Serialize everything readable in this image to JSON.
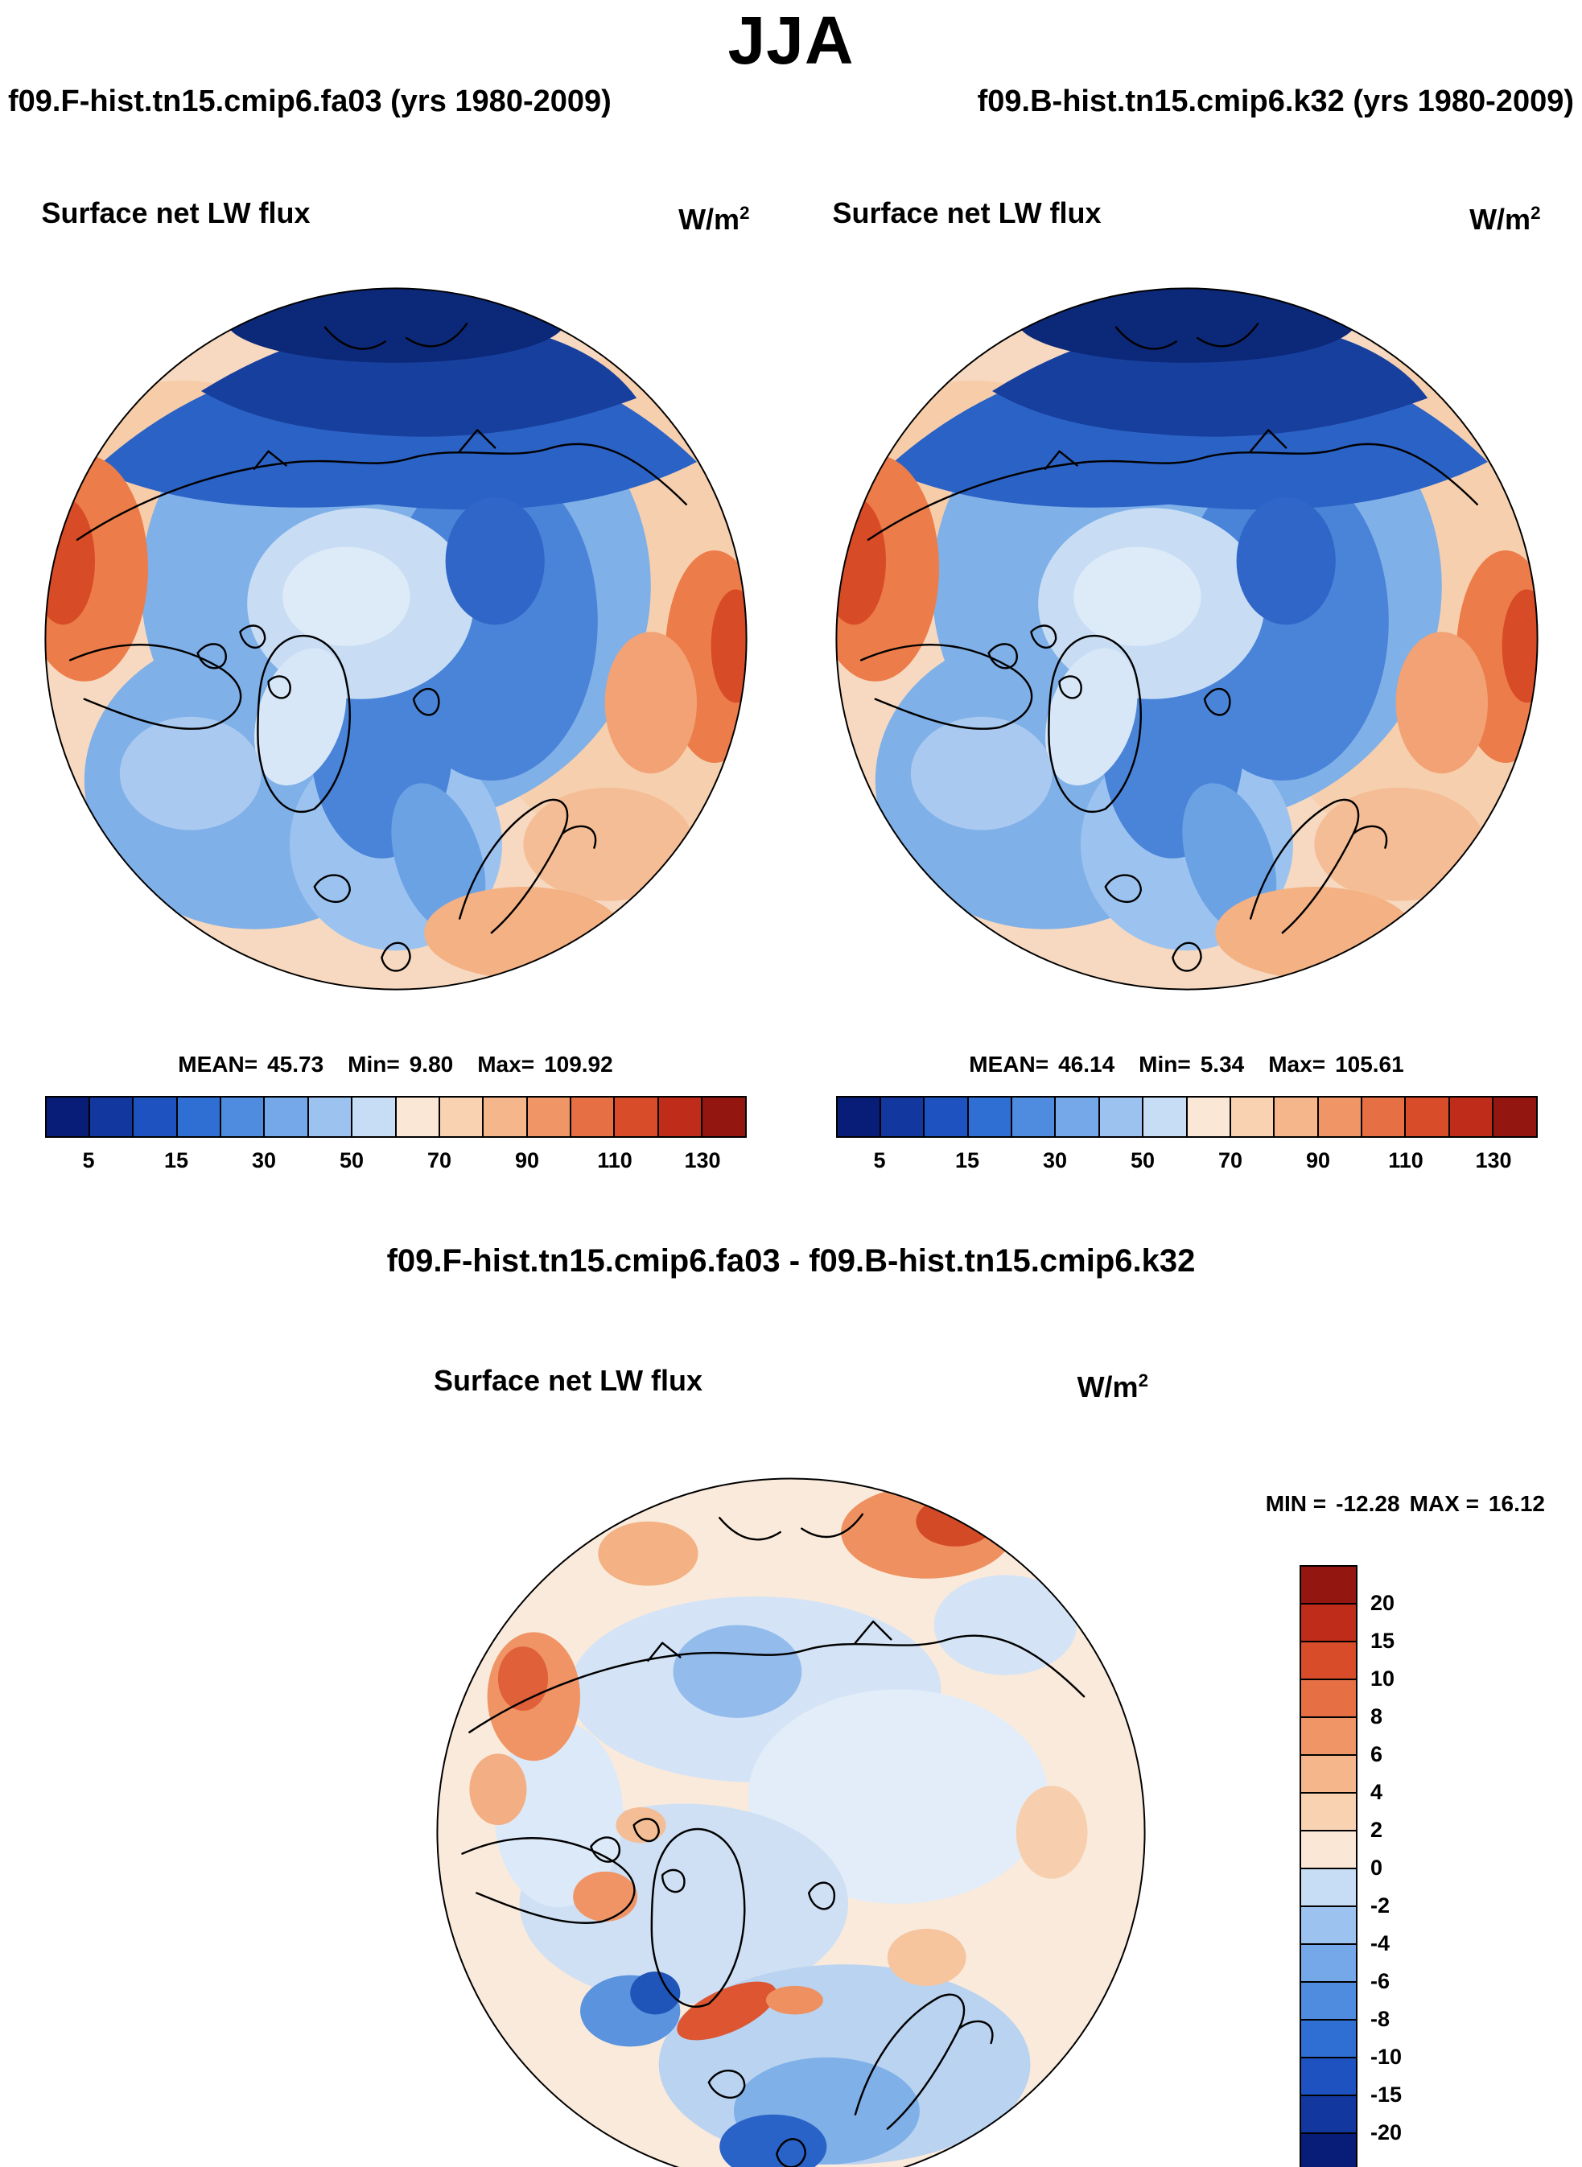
{
  "header": {
    "season": "JJA",
    "left_run": "f09.F-hist.tn15.cmip6.fa03 (yrs 1980-2009)",
    "right_run": "f09.B-hist.tn15.cmip6.k32 (yrs 1980-2009)"
  },
  "field": {
    "label": "Surface net LW flux",
    "units_base": "W/m",
    "units_exp": "2"
  },
  "panel_left": {
    "mean_label": "MEAN=",
    "mean": "45.73",
    "min_label": "Min=",
    "min": "9.80",
    "max_label": "Max=",
    "max": "109.92"
  },
  "panel_right": {
    "mean_label": "MEAN=",
    "mean": "46.14",
    "min_label": "Min=",
    "min": "5.34",
    "max_label": "Max=",
    "max": "105.61"
  },
  "diff_panel": {
    "title": "f09.F-hist.tn15.cmip6.fa03 - f09.B-hist.tn15.cmip6.k32",
    "min_label": "MIN =",
    "min": "-12.28",
    "max_label": "MAX =",
    "max": "16.12"
  },
  "colorbar_flux": {
    "colors": [
      "#081d78",
      "#12379e",
      "#1d52c0",
      "#2f6fd4",
      "#4f8ce0",
      "#74a8e8",
      "#9cc3f0",
      "#c6ddf5",
      "#fbe7d5",
      "#f9d2b2",
      "#f5b68c",
      "#ef9566",
      "#e67044",
      "#d94c2a",
      "#bf2c1a",
      "#931710"
    ],
    "ticks": [
      "5",
      "15",
      "30",
      "50",
      "70",
      "90",
      "110",
      "130"
    ]
  },
  "colorbar_diff": {
    "colors": [
      "#931710",
      "#bf2c1a",
      "#d94c2a",
      "#e67044",
      "#ef9566",
      "#f5b68c",
      "#f9d2b2",
      "#fbe7d5",
      "#c6ddf5",
      "#9cc3f0",
      "#74a8e8",
      "#4f8ce0",
      "#2f6fd4",
      "#1d52c0",
      "#12379e",
      "#081d78"
    ],
    "ticks": [
      "20",
      "15",
      "10",
      "8",
      "6",
      "4",
      "2",
      "0",
      "-2",
      "-4",
      "-6",
      "-8",
      "-10",
      "-15",
      "-20"
    ]
  },
  "chart_data": [
    {
      "type": "heatmap",
      "panel": "top-left",
      "title": "f09.F-hist.tn15.cmip6.fa03 (yrs 1980-2009)",
      "season": "JJA",
      "variable": "Surface net LW flux",
      "units": "W/m2",
      "projection": "north polar stereographic",
      "stats": {
        "mean": 45.73,
        "min": 9.8,
        "max": 109.92
      },
      "colorbar_tick_labels": [
        5,
        15,
        30,
        50,
        70,
        90,
        110,
        130
      ],
      "n_color_classes": 16,
      "palette": "blue-to-red diverging",
      "legend_position": "bottom horizontal"
    },
    {
      "type": "heatmap",
      "panel": "top-right",
      "title": "f09.B-hist.tn15.cmip6.k32 (yrs 1980-2009)",
      "season": "JJA",
      "variable": "Surface net LW flux",
      "units": "W/m2",
      "projection": "north polar stereographic",
      "stats": {
        "mean": 46.14,
        "min": 5.34,
        "max": 105.61
      },
      "colorbar_tick_labels": [
        5,
        15,
        30,
        50,
        70,
        90,
        110,
        130
      ],
      "n_color_classes": 16,
      "palette": "blue-to-red diverging",
      "legend_position": "bottom horizontal"
    },
    {
      "type": "heatmap",
      "panel": "bottom-difference",
      "title": "f09.F-hist.tn15.cmip6.fa03 - f09.B-hist.tn15.cmip6.k32",
      "season": "JJA",
      "variable": "Surface net LW flux",
      "units": "W/m2",
      "projection": "north polar stereographic",
      "stats": {
        "min": -12.28,
        "max": 16.12
      },
      "colorbar_levels_top_to_bottom": [
        20,
        15,
        10,
        8,
        6,
        4,
        2,
        0,
        -2,
        -4,
        -6,
        -8,
        -10,
        -15,
        -20
      ],
      "n_color_classes": 16,
      "palette": "red-to-blue diverging (red positive on top)",
      "legend_position": "right vertical"
    }
  ]
}
